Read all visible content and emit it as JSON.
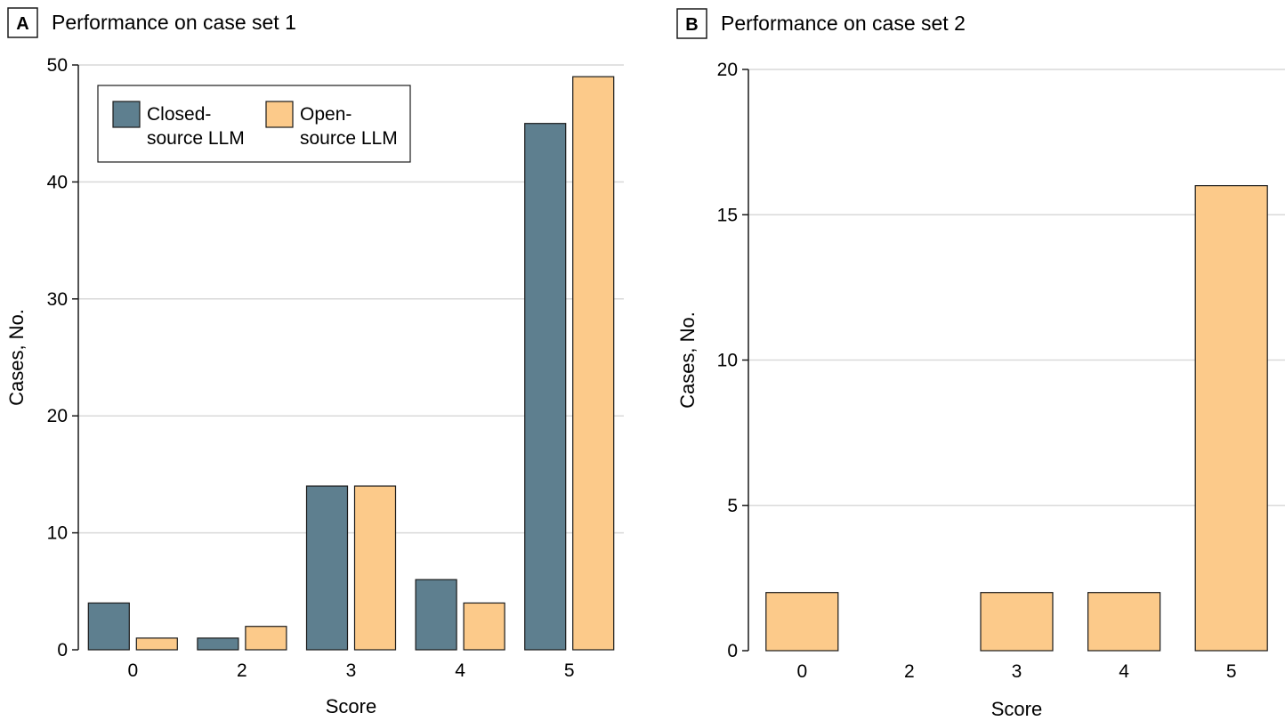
{
  "colors": {
    "closed": "#5e7f8f",
    "open": "#fcca8a",
    "edge": "#1a1a1a",
    "grid": "#d9d9d9"
  },
  "chart_data": [
    {
      "panel": "A",
      "title": "Performance on case set 1",
      "type": "bar",
      "categories": [
        "0",
        "2",
        "3",
        "4",
        "5"
      ],
      "series": [
        {
          "name": "Closed-source LLM",
          "legend_lines": [
            "Closed-",
            "source LLM"
          ],
          "color": "#5e7f8f",
          "values": [
            4,
            1,
            14,
            6,
            45
          ]
        },
        {
          "name": "Open-source LLM",
          "legend_lines": [
            "Open-",
            "source LLM"
          ],
          "color": "#fcca8a",
          "values": [
            1,
            2,
            14,
            4,
            49
          ]
        }
      ],
      "xlabel": "Score",
      "ylabel": "Cases, No.",
      "ylim": [
        0,
        50
      ],
      "yticks": [
        0,
        10,
        20,
        30,
        40,
        50
      ],
      "grid": true,
      "legend": "top-left"
    },
    {
      "panel": "B",
      "title": "Performance on case set 2",
      "type": "bar",
      "categories": [
        "0",
        "2",
        "3",
        "4",
        "5"
      ],
      "series": [
        {
          "name": "Open-source LLM",
          "color": "#fcca8a",
          "values": [
            2,
            0,
            2,
            2,
            16
          ]
        }
      ],
      "xlabel": "Score",
      "ylabel": "Cases, No.",
      "ylim": [
        0,
        20
      ],
      "yticks": [
        0,
        5,
        10,
        15,
        20
      ],
      "grid": true,
      "legend": "none"
    }
  ]
}
